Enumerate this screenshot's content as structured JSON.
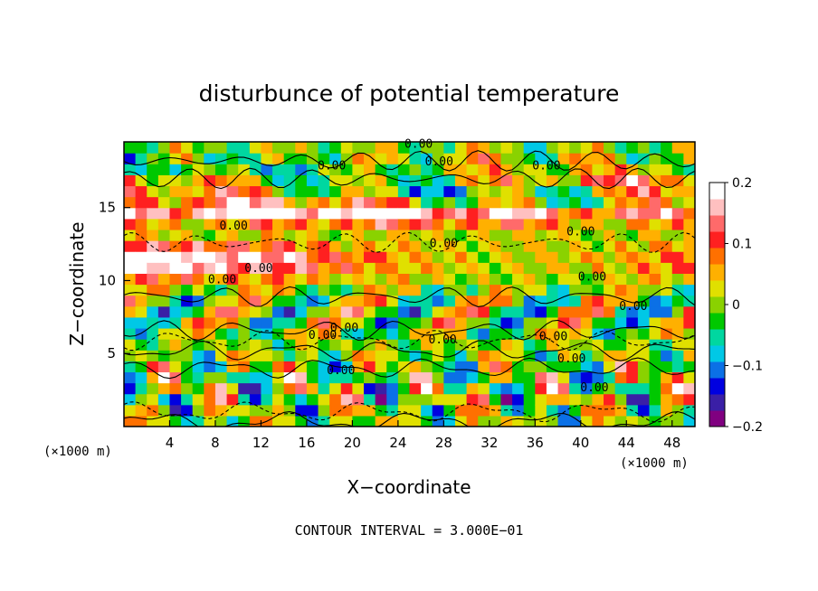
{
  "chart_data": {
    "type": "heatmap",
    "title": "disturbunce of potential temperature",
    "xlabel": "X−coordinate",
    "ylabel": "Z−coordinate",
    "x_unit_label": "(×1000 m)",
    "x_unit_label_right": "(×1000 m)",
    "footer": "CONTOUR INTERVAL = 3.000E−01",
    "xlim": [
      0,
      50
    ],
    "ylim": [
      0,
      19.5
    ],
    "x_ticks": [
      "4",
      "8",
      "12",
      "16",
      "20",
      "24",
      "28",
      "32",
      "36",
      "40",
      "44",
      "48"
    ],
    "y_ticks": [
      "5",
      "10",
      "15"
    ],
    "colorbar": {
      "range": [
        -0.2,
        0.2
      ],
      "tick_labels": [
        "0.2",
        "0.1",
        "0",
        "−0.1",
        "−0.2"
      ],
      "colors": [
        "#800080",
        "#3a1fa6",
        "#0000e0",
        "#0b70e6",
        "#00c8e6",
        "#00d7a0",
        "#00c800",
        "#8ad200",
        "#e0e000",
        "#ffb000",
        "#ff7000",
        "#ff2020",
        "#ff6a6a",
        "#ffc0c0",
        "#ffffff"
      ]
    },
    "contour_labels": [
      "0.00",
      "0.00",
      "0.00",
      "0.00",
      "0.00",
      "0.00",
      "0.00",
      "0.00",
      "0.00",
      "0.00",
      "0.00",
      "0.00",
      "0.00",
      "0.00",
      "0.00",
      "0.00",
      "0.00",
      "0.00"
    ],
    "grid": false,
    "legend": "colorbar-right"
  }
}
